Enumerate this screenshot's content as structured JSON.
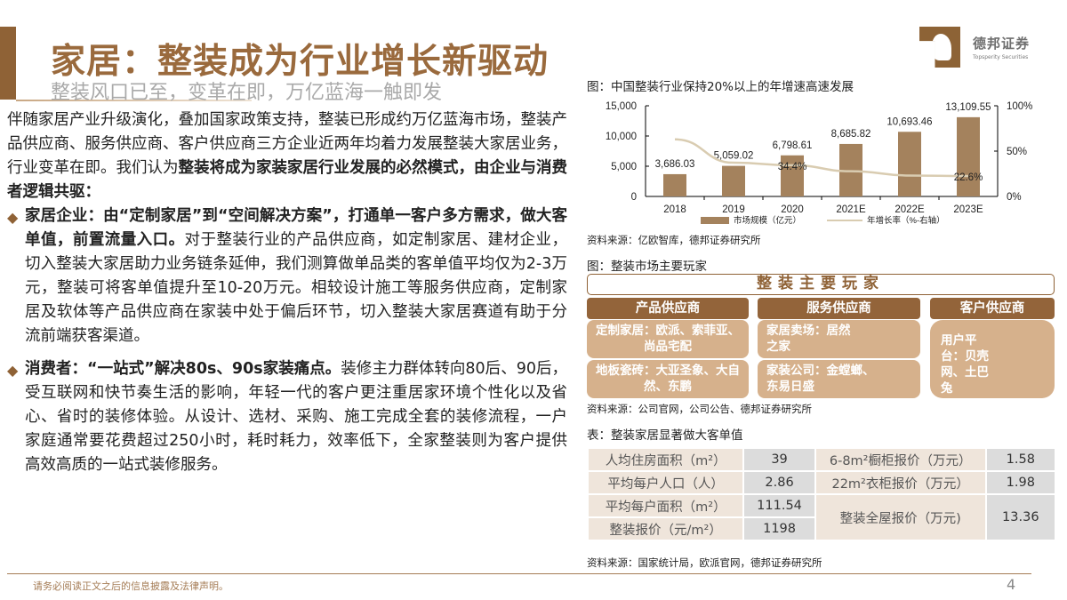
{
  "header": {
    "title": "家居：整装成为行业增长新驱动",
    "subtitle": "整装风口已至，变革在即，万亿蓝海一触即发"
  },
  "logo": {
    "name_cn": "德邦证券",
    "name_en": "Topsperity Securities",
    "brand_color": "#8d6336"
  },
  "body": {
    "intro_plain": "伴随家居产业升级演化，叠加国家政策支持，整装已形成约万亿蓝海市场，整装产品供应商、服务供应商、客户供应商三方企业近两年均着力发展整装大家居业务，行业变革在即。我们认为",
    "intro_bold": "整装将成为家装家居行业发展的必然模式，由企业与消费者逻辑共驱：",
    "bullets": [
      {
        "bold": "家居企业：由“定制家居”到“空间解决方案”，打通单一客户多方需求，做大客单值，前置流量入口。",
        "text": "对于整装行业的产品供应商，如定制家居、建材企业，切入整装大家居助力业务链条延伸，我们测算做单品类的客单值平均仅为2-3万元，整装可将客单值提升至10-20万元。相较设计施工等服务供应商，定制家居及软体等产品供应商在家装中处于偏后环节，切入整装大家居赛道有助于分流前端获客渠道。"
      },
      {
        "bold": "消费者：“一站式”解决80s、90s家装痛点。",
        "text": "装修主力群体转向80后、90后，受互联网和快节奏生活的影响，年轻一代的客户更注重居家环境个性化以及省心、省时的装修体验。从设计、选材、采购、施工完成全套的装修流程，一户家庭通常要花费超过250小时，耗时耗力，效率低下，全家整装则为客户提供高效高质的一站式装修服务。"
      }
    ]
  },
  "figure1": {
    "caption": "图：中国整装行业保持20%以上的年增速高速发展",
    "source": "资料来源：亿欧智库，德邦证券研究所"
  },
  "chart_data": {
    "type": "bar",
    "title": "图：中国整装行业保持20%以上的年增速高速发展",
    "categories": [
      "2018",
      "2019",
      "2020",
      "2021E",
      "2022E",
      "2023E"
    ],
    "series": [
      {
        "name": "市场规模（亿元）",
        "type": "bar",
        "axis": "left",
        "color": "#a4825d",
        "values": [
          3686.03,
          5059.02,
          6798.61,
          8685.82,
          10693.46,
          13109.55
        ],
        "labels": [
          "3,686.03",
          "5,059.02",
          "6,798.61",
          "8,685.82",
          "10,693.46",
          "13,109.55"
        ]
      },
      {
        "name": "年增长率（%-右轴）",
        "type": "line",
        "axis": "right",
        "color": "#d9ccb1",
        "values": [
          63,
          37.2,
          34.4,
          27.8,
          23.1,
          22.6
        ],
        "labels": [
          "",
          "",
          "34.4%",
          "",
          "",
          "22.6%"
        ]
      }
    ],
    "left_axis": {
      "ticks": [
        "0",
        "5,000",
        "10,000",
        "15,000"
      ],
      "ylim": [
        0,
        15000
      ]
    },
    "right_axis": {
      "ticks": [
        "0%",
        "50%",
        "100%"
      ],
      "ylim": [
        0,
        100
      ]
    },
    "legend_position": "bottom",
    "grid": false
  },
  "figure2": {
    "caption": "图：整装市场主要玩家",
    "header": "整装主要玩家",
    "categories": [
      {
        "title": "产品供应商",
        "boxes": [
          "定制家居：欧派、索菲亚、尚品宅配",
          "地板瓷砖：大亚圣象、大自然、东鹏"
        ]
      },
      {
        "title": "服务供应商",
        "boxes": [
          "家居卖场：居然之家",
          "家装公司：金螳螂、东易日盛"
        ]
      },
      {
        "title": "客户供应商",
        "boxes": [
          "用户平台：贝壳网、土巴兔"
        ]
      }
    ],
    "source": "资料来源：公司官网，公司公告、德邦证券研究所"
  },
  "table": {
    "caption": "表：整装家居显著做大客单值",
    "rows": [
      {
        "label": "人均住房面积（m²）",
        "value": "39",
        "label2": "6-8m²橱柜报价（万元）",
        "value2": "1.58"
      },
      {
        "label": "平均每户人口（人）",
        "value": "2.86",
        "label2": "22m²衣柜报价（万元）",
        "value2": "1.98"
      },
      {
        "label": "平均每户面积（m²）",
        "value": "111.54",
        "label2": "整装全屋报价（万元)",
        "value2": "13.36"
      },
      {
        "label": "整装报价（元/m²）",
        "value": "1198"
      }
    ],
    "source": "资料来源：国家统计局，欧派官网，德邦证券研究所"
  },
  "footer": {
    "disclaimer": "请务必阅读正文之后的信息披露及法律声明。",
    "page_number": "4"
  }
}
